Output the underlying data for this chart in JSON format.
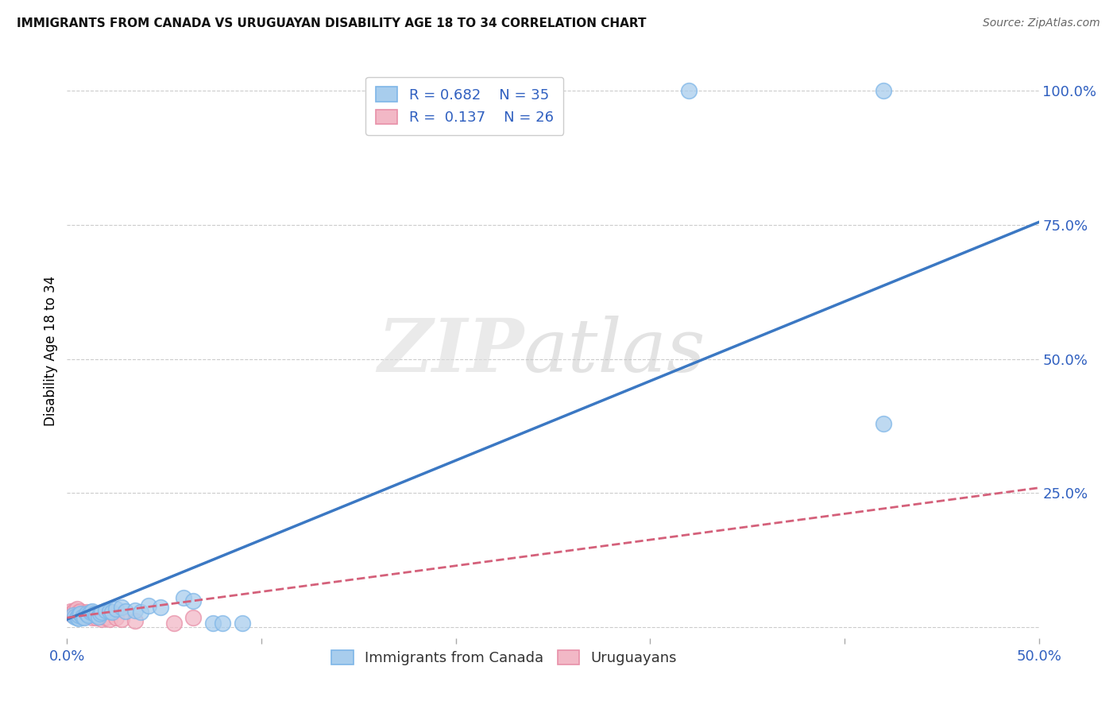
{
  "title": "IMMIGRANTS FROM CANADA VS URUGUAYAN DISABILITY AGE 18 TO 34 CORRELATION CHART",
  "source": "Source: ZipAtlas.com",
  "ylabel": "Disability Age 18 to 34",
  "xlim": [
    0.0,
    0.5
  ],
  "ylim": [
    -0.02,
    1.05
  ],
  "ytick_labels_right": [
    "100.0%",
    "75.0%",
    "50.0%",
    "25.0%"
  ],
  "ytick_positions_right": [
    1.0,
    0.75,
    0.5,
    0.25
  ],
  "ytick_gridlines": [
    1.0,
    0.75,
    0.5,
    0.25,
    0.0
  ],
  "watermark_zip": "ZIP",
  "watermark_atlas": "atlas",
  "legend_r1": "R = 0.682",
  "legend_n1": "N = 35",
  "legend_r2": "R =  0.137",
  "legend_n2": "N = 26",
  "blue_color": "#A8CDED",
  "pink_color": "#F2B8C6",
  "blue_edge_color": "#7EB6E8",
  "pink_edge_color": "#E890A8",
  "blue_line_color": "#3B78C3",
  "pink_line_color": "#D4607A",
  "blue_scatter": [
    [
      0.003,
      0.022
    ],
    [
      0.004,
      0.02
    ],
    [
      0.005,
      0.018
    ],
    [
      0.006,
      0.016
    ],
    [
      0.006,
      0.022
    ],
    [
      0.007,
      0.025
    ],
    [
      0.008,
      0.02
    ],
    [
      0.009,
      0.018
    ],
    [
      0.01,
      0.025
    ],
    [
      0.011,
      0.022
    ],
    [
      0.012,
      0.028
    ],
    [
      0.013,
      0.03
    ],
    [
      0.014,
      0.025
    ],
    [
      0.015,
      0.022
    ],
    [
      0.016,
      0.02
    ],
    [
      0.017,
      0.025
    ],
    [
      0.018,
      0.028
    ],
    [
      0.02,
      0.032
    ],
    [
      0.022,
      0.03
    ],
    [
      0.023,
      0.028
    ],
    [
      0.025,
      0.035
    ],
    [
      0.028,
      0.038
    ],
    [
      0.03,
      0.03
    ],
    [
      0.035,
      0.032
    ],
    [
      0.038,
      0.028
    ],
    [
      0.042,
      0.04
    ],
    [
      0.048,
      0.038
    ],
    [
      0.06,
      0.055
    ],
    [
      0.065,
      0.05
    ],
    [
      0.075,
      0.008
    ],
    [
      0.08,
      0.008
    ],
    [
      0.09,
      0.008
    ],
    [
      0.32,
      1.0
    ],
    [
      0.42,
      1.0
    ],
    [
      0.42,
      0.38
    ]
  ],
  "pink_scatter": [
    [
      0.002,
      0.025
    ],
    [
      0.002,
      0.03
    ],
    [
      0.003,
      0.022
    ],
    [
      0.003,
      0.028
    ],
    [
      0.004,
      0.025
    ],
    [
      0.004,
      0.032
    ],
    [
      0.005,
      0.02
    ],
    [
      0.005,
      0.035
    ],
    [
      0.006,
      0.028
    ],
    [
      0.007,
      0.022
    ],
    [
      0.007,
      0.03
    ],
    [
      0.008,
      0.025
    ],
    [
      0.009,
      0.02
    ],
    [
      0.01,
      0.028
    ],
    [
      0.012,
      0.022
    ],
    [
      0.013,
      0.018
    ],
    [
      0.015,
      0.018
    ],
    [
      0.016,
      0.02
    ],
    [
      0.018,
      0.015
    ],
    [
      0.02,
      0.018
    ],
    [
      0.022,
      0.015
    ],
    [
      0.025,
      0.018
    ],
    [
      0.028,
      0.015
    ],
    [
      0.035,
      0.012
    ],
    [
      0.055,
      0.008
    ],
    [
      0.065,
      0.018
    ]
  ],
  "blue_trend_x": [
    0.0,
    0.5
  ],
  "blue_trend_y": [
    0.015,
    0.755
  ],
  "pink_trend_x": [
    0.0,
    0.5
  ],
  "pink_trend_y": [
    0.018,
    0.26
  ],
  "grid_color": "#CCCCCC",
  "background_color": "#FFFFFF",
  "tick_color": "#3060C0",
  "title_fontsize": 11,
  "source_fontsize": 10,
  "axis_label_fontsize": 12,
  "tick_fontsize": 13,
  "legend_fontsize": 13
}
